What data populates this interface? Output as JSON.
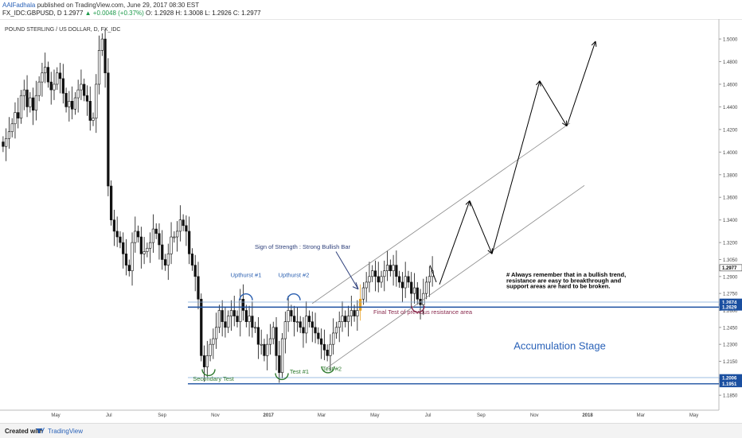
{
  "header": {
    "author": "AAlFadhala",
    "published": "published on TradingView.com, June 29, 2017 08:30 EST",
    "symbol": "FX_IDC:GBPUSD, D",
    "last": "1.2977",
    "change": "▲ +0.0048 (+0.37%)",
    "ohlc": "O: 1.2928 H: 1.3008 L: 1.2926 C: 1.2977"
  },
  "footer": {
    "created_with": "Created with",
    "brand": "TradingView"
  },
  "chart_data": {
    "type": "candlestick",
    "title": "POUND STERLING / US DOLLAR, D, FX_IDC",
    "x_ticks": [
      "May",
      "Jul",
      "Sep",
      "Nov",
      "2017",
      "Mar",
      "May",
      "Jul",
      "Sep",
      "Nov",
      "2018",
      "Mar",
      "May"
    ],
    "y_ticks": [
      1.5,
      1.48,
      1.46,
      1.44,
      1.42,
      1.4,
      1.38,
      1.36,
      1.34,
      1.32,
      1.305,
      1.29,
      1.275,
      1.26,
      1.245,
      1.23,
      1.215,
      1.2,
      1.185
    ],
    "y_tick_labels": [
      "1.5000",
      "1.4800",
      "1.4600",
      "1.4400",
      "1.4200",
      "1.4000",
      "1.3800",
      "1.3600",
      "1.3400",
      "1.3200",
      "1.3050",
      "1.2900",
      "1.2750",
      "1.2600",
      "1.2450",
      "1.2300",
      "1.2150",
      "1.2000",
      "1.1850"
    ],
    "price_markers": [
      {
        "label": "1.2977",
        "value": 1.2977,
        "color": "#ffffff",
        "text_color": "#000000"
      },
      {
        "label": "1.2674",
        "value": 1.2674,
        "color": "#1a4fa0",
        "text_color": "#ffffff"
      },
      {
        "label": "1.2629",
        "value": 1.2629,
        "color": "#1a4fa0",
        "text_color": "#ffffff"
      },
      {
        "label": "1.2006",
        "value": 1.2006,
        "color": "#1a4fa0",
        "text_color": "#ffffff"
      },
      {
        "label": "1.1951",
        "value": 1.1951,
        "color": "#1a4fa0",
        "text_color": "#ffffff"
      }
    ],
    "annotations": [
      {
        "text": "Sign of Strength : Strong Bullish Bar",
        "color": "#2d3f7a"
      },
      {
        "text": "Upthurst #1",
        "color": "#2a5fb0"
      },
      {
        "text": "Upthurst #2",
        "color": "#2a5fb0"
      },
      {
        "text": "Final Test of previous resistance area",
        "color": "#8a2b4e"
      },
      {
        "text": "Accumulation Stage",
        "color": "#2a62b8"
      },
      {
        "text": "Secondary Test",
        "color": "#2e7a2e"
      },
      {
        "text": "Test #1",
        "color": "#2e7a2e"
      },
      {
        "text": "Test #2",
        "color": "#2e7a2e"
      },
      {
        "text": "# Always remember that in a bullish trend,",
        "color": "#000000"
      },
      {
        "text": "resistance are easy to breakthrough and",
        "color": "#000000"
      },
      {
        "text": "support areas are hard to be broken.",
        "color": "#000000"
      }
    ],
    "projection_path": [
      1.283,
      1.357,
      1.31,
      1.463,
      1.423,
      1.498
    ],
    "series": {
      "close": [
        1.405,
        1.412,
        1.418,
        1.425,
        1.435,
        1.43,
        1.45,
        1.455,
        1.44,
        1.448,
        1.437,
        1.45,
        1.462,
        1.47,
        1.475,
        1.462,
        1.455,
        1.46,
        1.47,
        1.465,
        1.452,
        1.44,
        1.445,
        1.438,
        1.448,
        1.455,
        1.46,
        1.45,
        1.445,
        1.428,
        1.43,
        1.46,
        1.49,
        1.5,
        1.47,
        1.37,
        1.34,
        1.33,
        1.325,
        1.32,
        1.31,
        1.3,
        1.295,
        1.32,
        1.33,
        1.325,
        1.31,
        1.312,
        1.315,
        1.32,
        1.332,
        1.328,
        1.318,
        1.305,
        1.3,
        1.31,
        1.325,
        1.325,
        1.33,
        1.34,
        1.335,
        1.33,
        1.31,
        1.3,
        1.29,
        1.27,
        1.22,
        1.21,
        1.22,
        1.23,
        1.235,
        1.245,
        1.26,
        1.25,
        1.245,
        1.255,
        1.26,
        1.255,
        1.25,
        1.27,
        1.26,
        1.25,
        1.255,
        1.245,
        1.245,
        1.23,
        1.23,
        1.22,
        1.23,
        1.235,
        1.245,
        1.22,
        1.205,
        1.235,
        1.25,
        1.26,
        1.255,
        1.25,
        1.25,
        1.245,
        1.24,
        1.255,
        1.25,
        1.245,
        1.24,
        1.235,
        1.23,
        1.225,
        1.22,
        1.23,
        1.24,
        1.245,
        1.25,
        1.255,
        1.25,
        1.255,
        1.26,
        1.255,
        1.26,
        1.27,
        1.28,
        1.285,
        1.29,
        1.295,
        1.29,
        1.285,
        1.29,
        1.295,
        1.3,
        1.295,
        1.3,
        1.29,
        1.285,
        1.28,
        1.29,
        1.285,
        1.275,
        1.28,
        1.27,
        1.265,
        1.275,
        1.285,
        1.29,
        1.295
      ]
    },
    "ylim": [
      1.176,
      1.512
    ]
  }
}
